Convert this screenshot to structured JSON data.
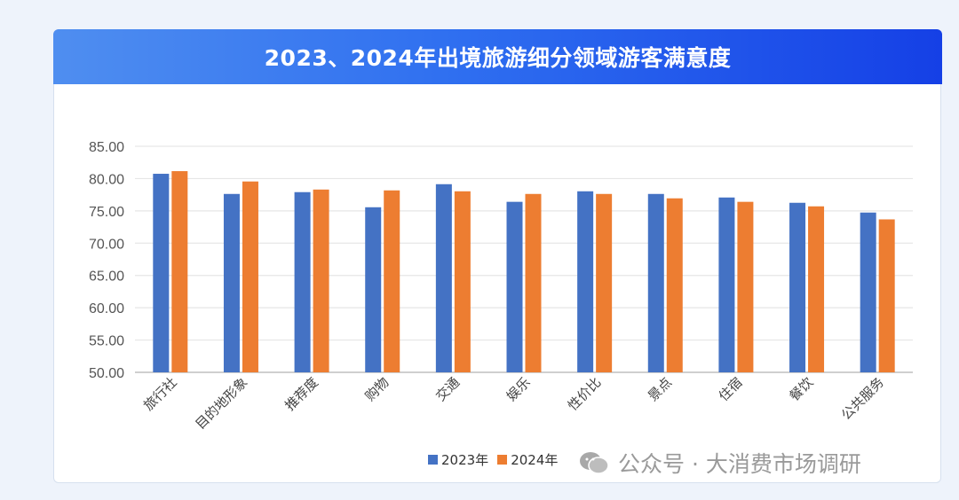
{
  "chart_data": {
    "type": "bar",
    "title": "2023、2024年出境旅游细分领域游客满意度",
    "xlabel": "",
    "ylabel": "",
    "ylim": [
      50,
      85
    ],
    "yticks": [
      "50.00",
      "55.00",
      "60.00",
      "65.00",
      "70.00",
      "75.00",
      "80.00",
      "85.00"
    ],
    "grid": true,
    "legend_position": "bottom",
    "categories": [
      "旅行社",
      "目的地形象",
      "推荐度",
      "购物",
      "交通",
      "娱乐",
      "性价比",
      "景点",
      "住宿",
      "餐饮",
      "公共服务"
    ],
    "series": [
      {
        "name": "2023年",
        "color": "#4472c4",
        "values": [
          80.74,
          77.62,
          77.9,
          75.56,
          79.13,
          76.4,
          78.03,
          77.62,
          77.07,
          76.25,
          74.74
        ]
      },
      {
        "name": "2024年",
        "color": "#ed7d31",
        "values": [
          81.15,
          79.55,
          78.3,
          78.17,
          78.03,
          77.62,
          77.62,
          76.94,
          76.4,
          75.7,
          73.68
        ]
      }
    ]
  },
  "watermark": "公众号 · 大消费市场调研"
}
